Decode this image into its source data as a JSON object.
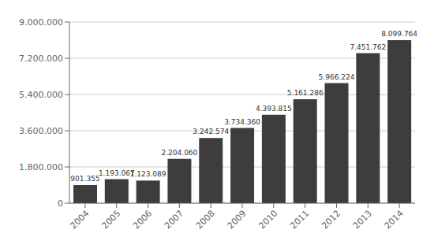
{
  "chart_data": {
    "type": "bar",
    "categories": [
      "2004",
      "2005",
      "2006",
      "2007",
      "2008",
      "2009",
      "2010",
      "2011",
      "2012",
      "2013",
      "2014"
    ],
    "values": [
      901355,
      1193067,
      1123089,
      2204060,
      3242574,
      3734360,
      4393815,
      5161286,
      5966224,
      7451762,
      8099764
    ],
    "value_labels": [
      "901.355",
      "1.193.067",
      "1.123.089",
      "2.204.060",
      "3.242.574",
      "3.734.360",
      "4.393.815",
      "5.161.286",
      "5.966.224",
      "7.451.762",
      "8.099.764"
    ],
    "data_labels": true,
    "color": "#3d3d3d",
    "ylim": [
      0,
      9000000
    ],
    "yticks": [
      0,
      {
        "value": 1800000,
        "label": "1.800.000"
      },
      {
        "value": 3600000,
        "label": "3.600.000"
      },
      {
        "value": 5400000,
        "label": "5.400.000"
      },
      {
        "value": 7200000,
        "label": "7.200.000"
      },
      {
        "value": 9000000,
        "label": "9.000.000"
      }
    ],
    "grid": true
  }
}
